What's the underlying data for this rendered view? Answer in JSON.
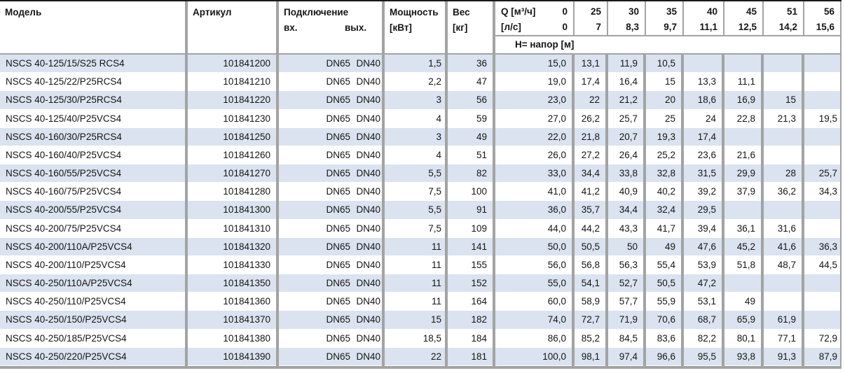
{
  "colors": {
    "row_alt": "#dae3ef",
    "border_gray": "#a3a3a3",
    "border_dark": "#1a1a1a"
  },
  "header": {
    "model": "Модель",
    "article": "Артикул",
    "connection": "Подключение",
    "inlet": "вх.",
    "outlet": "вых.",
    "power_line1": "Мощность",
    "power_line2": "[кВт]",
    "weight_line1": "Вес",
    "weight_line2": "[кг]",
    "q_label": "Q [м³/ч]",
    "ls_label": "[л/с]",
    "head_label": "Н= напор [м]",
    "q_columns": [
      {
        "m3h": "0",
        "ls": "0"
      },
      {
        "m3h": "25",
        "ls": "7"
      },
      {
        "m3h": "30",
        "ls": "8,3"
      },
      {
        "m3h": "35",
        "ls": "9,7"
      },
      {
        "m3h": "40",
        "ls": "11,1"
      },
      {
        "m3h": "45",
        "ls": "12,5"
      },
      {
        "m3h": "51",
        "ls": "14,2"
      },
      {
        "m3h": "56",
        "ls": "15,6"
      }
    ]
  },
  "rows": [
    {
      "model": "NSCS 40-125/15/S25 RCS4",
      "article": "101841200",
      "inlet": "DN65",
      "outlet": "DN40",
      "power": "1,5",
      "weight": "36",
      "heads": [
        "15,0",
        "13,1",
        "11,9",
        "10,5",
        "",
        "",
        "",
        ""
      ]
    },
    {
      "model": "NSCS 40-125/22/P25RCS4",
      "article": "101841210",
      "inlet": "DN65",
      "outlet": "DN40",
      "power": "2,2",
      "weight": "47",
      "heads": [
        "19,0",
        "17,4",
        "16,4",
        "15",
        "13,3",
        "11,1",
        "",
        ""
      ]
    },
    {
      "model": "NSCS 40-125/30/P25RCS4",
      "article": "101841220",
      "inlet": "DN65",
      "outlet": "DN40",
      "power": "3",
      "weight": "56",
      "heads": [
        "23,0",
        "22",
        "21,2",
        "20",
        "18,6",
        "16,9",
        "15",
        ""
      ]
    },
    {
      "model": "NSCS 40-125/40/P25VCS4",
      "article": "101841230",
      "inlet": "DN65",
      "outlet": "DN40",
      "power": "4",
      "weight": "59",
      "heads": [
        "27,0",
        "26,2",
        "25,7",
        "25",
        "24",
        "22,8",
        "21,3",
        "19,5"
      ]
    },
    {
      "model": "NSCS 40-160/30/P25RCS4",
      "article": "101841250",
      "inlet": "DN65",
      "outlet": "DN40",
      "power": "3",
      "weight": "49",
      "heads": [
        "22,0",
        "21,8",
        "20,7",
        "19,3",
        "17,4",
        "",
        "",
        ""
      ]
    },
    {
      "model": "NSCS 40-160/40/P25VCS4",
      "article": "101841260",
      "inlet": "DN65",
      "outlet": "DN40",
      "power": "4",
      "weight": "51",
      "heads": [
        "26,0",
        "27,2",
        "26,4",
        "25,2",
        "23,6",
        "21,6",
        "",
        ""
      ]
    },
    {
      "model": "NSCS 40-160/55/P25VCS4",
      "article": "101841270",
      "inlet": "DN65",
      "outlet": "DN40",
      "power": "5,5",
      "weight": "82",
      "heads": [
        "33,0",
        "34,4",
        "33,8",
        "32,8",
        "31,5",
        "29,9",
        "28",
        "25,7"
      ]
    },
    {
      "model": "NSCS 40-160/75/P25VCS4",
      "article": "101841280",
      "inlet": "DN65",
      "outlet": "DN40",
      "power": "7,5",
      "weight": "100",
      "heads": [
        "41,0",
        "41,2",
        "40,9",
        "40,2",
        "39,2",
        "37,9",
        "36,2",
        "34,3"
      ]
    },
    {
      "model": "NSCS 40-200/55/P25VCS4",
      "article": "101841300",
      "inlet": "DN65",
      "outlet": "DN40",
      "power": "5,5",
      "weight": "91",
      "heads": [
        "36,0",
        "35,7",
        "34,4",
        "32,4",
        "29,5",
        "",
        "",
        ""
      ]
    },
    {
      "model": "NSCS 40-200/75/P25VCS4",
      "article": "101841310",
      "inlet": "DN65",
      "outlet": "DN40",
      "power": "7,5",
      "weight": "109",
      "heads": [
        "44,0",
        "44,2",
        "43,3",
        "41,7",
        "39,4",
        "36,1",
        "31,6",
        ""
      ]
    },
    {
      "model": "NSCS 40-200/110A/P25VCS4",
      "article": "101841320",
      "inlet": "DN65",
      "outlet": "DN40",
      "power": "11",
      "weight": "141",
      "heads": [
        "50,0",
        "50,5",
        "50",
        "49",
        "47,6",
        "45,2",
        "41,6",
        "36,3"
      ]
    },
    {
      "model": "NSCS 40-200/110/P25VCS4",
      "article": "101841330",
      "inlet": "DN65",
      "outlet": "DN40",
      "power": "11",
      "weight": "155",
      "heads": [
        "56,0",
        "56,8",
        "56,3",
        "55,4",
        "53,9",
        "51,8",
        "48,7",
        "44,5"
      ]
    },
    {
      "model": "NSCS 40-250/110A/P25VCS4",
      "article": "101841350",
      "inlet": "DN65",
      "outlet": "DN40",
      "power": "11",
      "weight": "152",
      "heads": [
        "55,0",
        "54,1",
        "52,7",
        "50,5",
        "47,2",
        "",
        "",
        ""
      ]
    },
    {
      "model": "NSCS 40-250/110/P25VCS4",
      "article": "101841360",
      "inlet": "DN65",
      "outlet": "DN40",
      "power": "11",
      "weight": "164",
      "heads": [
        "60,0",
        "58,9",
        "57,7",
        "55,9",
        "53,1",
        "49",
        "",
        ""
      ]
    },
    {
      "model": "NSCS 40-250/150/P25VCS4",
      "article": "101841370",
      "inlet": "DN65",
      "outlet": "DN40",
      "power": "15",
      "weight": "182",
      "heads": [
        "74,0",
        "72,7",
        "71,9",
        "70,6",
        "68,7",
        "65,9",
        "61,9",
        ""
      ]
    },
    {
      "model": "NSCS 40-250/185/P25VCS4",
      "article": "101841380",
      "inlet": "DN65",
      "outlet": "DN40",
      "power": "18,5",
      "weight": "184",
      "heads": [
        "86,0",
        "85,2",
        "84,5",
        "83,6",
        "82,2",
        "80,1",
        "77,1",
        "72,9"
      ]
    },
    {
      "model": "NSCS 40-250/220/P25VCS4",
      "article": "101841390",
      "inlet": "DN65",
      "outlet": "DN40",
      "power": "22",
      "weight": "181",
      "heads": [
        "100,0",
        "98,1",
        "97,4",
        "96,6",
        "95,5",
        "93,8",
        "91,3",
        "87,9"
      ]
    }
  ]
}
